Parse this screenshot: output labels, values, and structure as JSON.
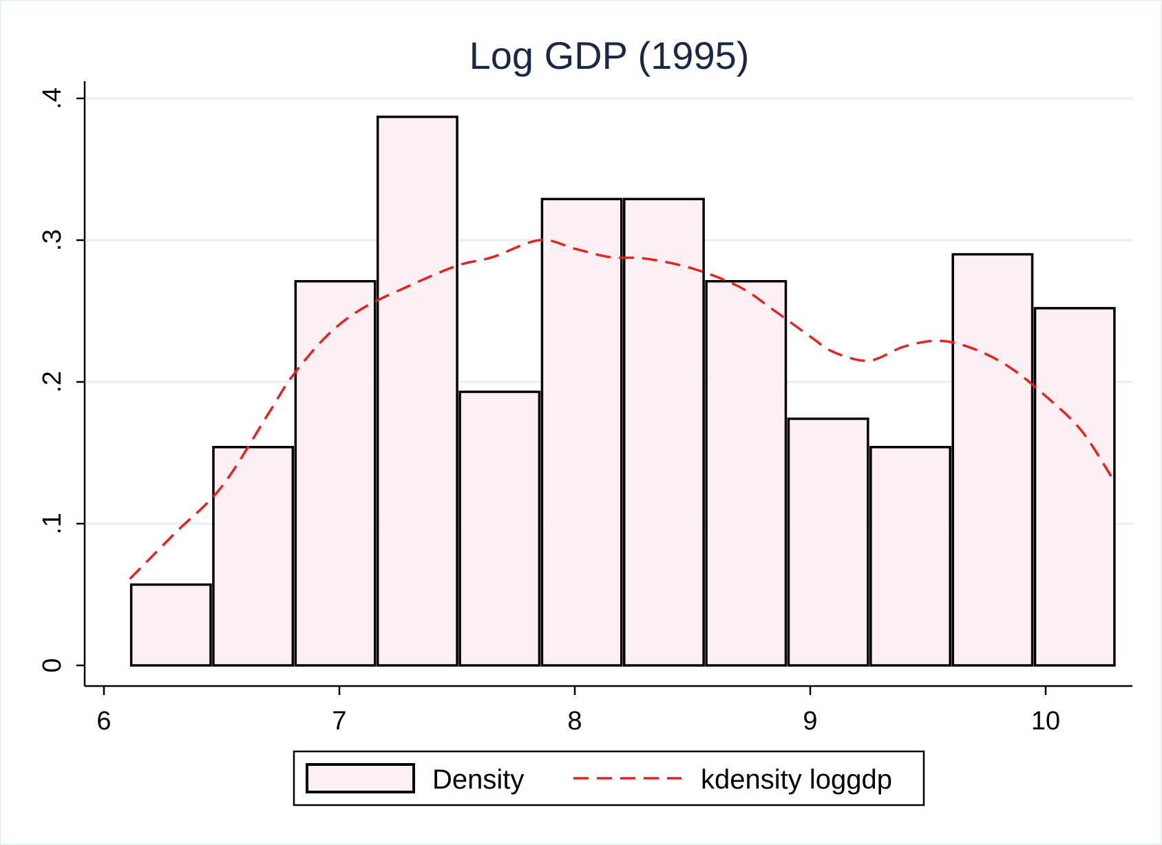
{
  "chart_data": {
    "type": "bar",
    "title": "Log GDP (1995)",
    "xlabel": "",
    "ylabel": "",
    "xlim": [
      6,
      10.4
    ],
    "ylim": [
      0,
      0.4
    ],
    "x_ticks": [
      {
        "value": 6,
        "label": "6"
      },
      {
        "value": 7,
        "label": "7"
      },
      {
        "value": 8,
        "label": "8"
      },
      {
        "value": 9,
        "label": "9"
      },
      {
        "value": 10,
        "label": "10"
      }
    ],
    "y_ticks": [
      {
        "value": 0,
        "label": "0"
      },
      {
        "value": 0.1,
        "label": ".1"
      },
      {
        "value": 0.2,
        "label": ".2"
      },
      {
        "value": 0.3,
        "label": ".3"
      },
      {
        "value": 0.4,
        "label": ".4"
      }
    ],
    "grid": true,
    "histogram": {
      "name": "Density",
      "bin_start": 6.11,
      "bin_width": 0.349,
      "values": [
        0.057,
        0.154,
        0.271,
        0.387,
        0.193,
        0.329,
        0.329,
        0.271,
        0.174,
        0.154,
        0.29,
        0.252
      ]
    },
    "kdensity": {
      "name": "kdensity loggdp",
      "x": [
        6.11,
        6.3,
        6.5,
        6.7,
        6.8,
        6.95,
        7.1,
        7.3,
        7.5,
        7.65,
        7.85,
        8.0,
        8.15,
        8.3,
        8.5,
        8.7,
        8.85,
        9.0,
        9.1,
        9.25,
        9.4,
        9.55,
        9.7,
        9.85,
        10.0,
        10.15,
        10.28
      ],
      "y": [
        0.061,
        0.093,
        0.126,
        0.178,
        0.204,
        0.233,
        0.252,
        0.268,
        0.282,
        0.288,
        0.3,
        0.294,
        0.288,
        0.287,
        0.28,
        0.267,
        0.25,
        0.232,
        0.221,
        0.215,
        0.225,
        0.229,
        0.223,
        0.21,
        0.19,
        0.166,
        0.133
      ]
    },
    "legend_position": "bottom",
    "colors": {
      "bar_fill": "#fdf0f5",
      "bar_stroke": "#000000",
      "line": "#e8211d",
      "grid": "#e6eef0",
      "title": "#1a2747",
      "frame": "#e9f1f3"
    }
  }
}
